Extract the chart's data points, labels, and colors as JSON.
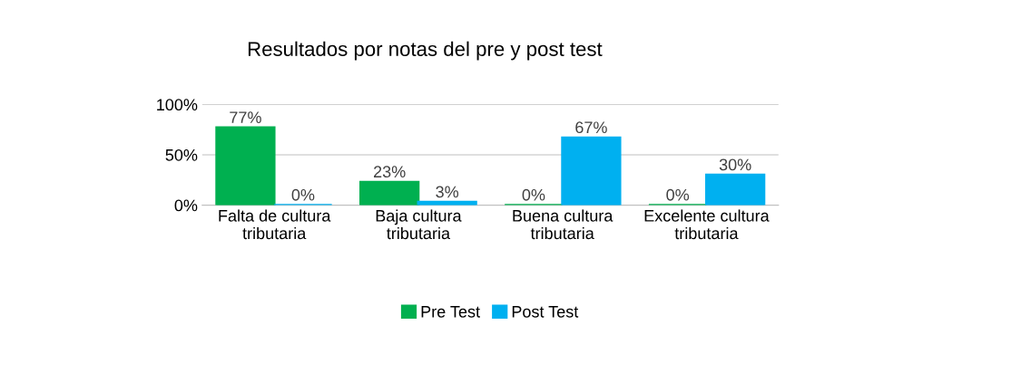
{
  "chart_data": {
    "type": "bar",
    "title": "Resultados por notas del pre y post test",
    "categories": [
      "Falta de cultura tributaria",
      "Baja cultura tributaria",
      "Buena cultura tributaria",
      "Excelente cultura tributaria"
    ],
    "series": [
      {
        "name": "Pre Test",
        "color": "#00b050",
        "values": [
          77,
          23,
          0,
          0
        ],
        "value_labels": [
          "77%",
          "23%",
          "0%",
          "0%"
        ]
      },
      {
        "name": "Post Test",
        "color": "#00b0f0",
        "values": [
          0,
          3,
          67,
          30
        ],
        "value_labels": [
          "0%",
          "3%",
          "67%",
          "30%"
        ]
      }
    ],
    "ylim": [
      0,
      100
    ],
    "yticks": [
      {
        "value": 0,
        "label": "0%"
      },
      {
        "value": 50,
        "label": "50%"
      },
      {
        "value": 100,
        "label": "100%"
      }
    ],
    "grid": "y",
    "legend": "bottom"
  }
}
